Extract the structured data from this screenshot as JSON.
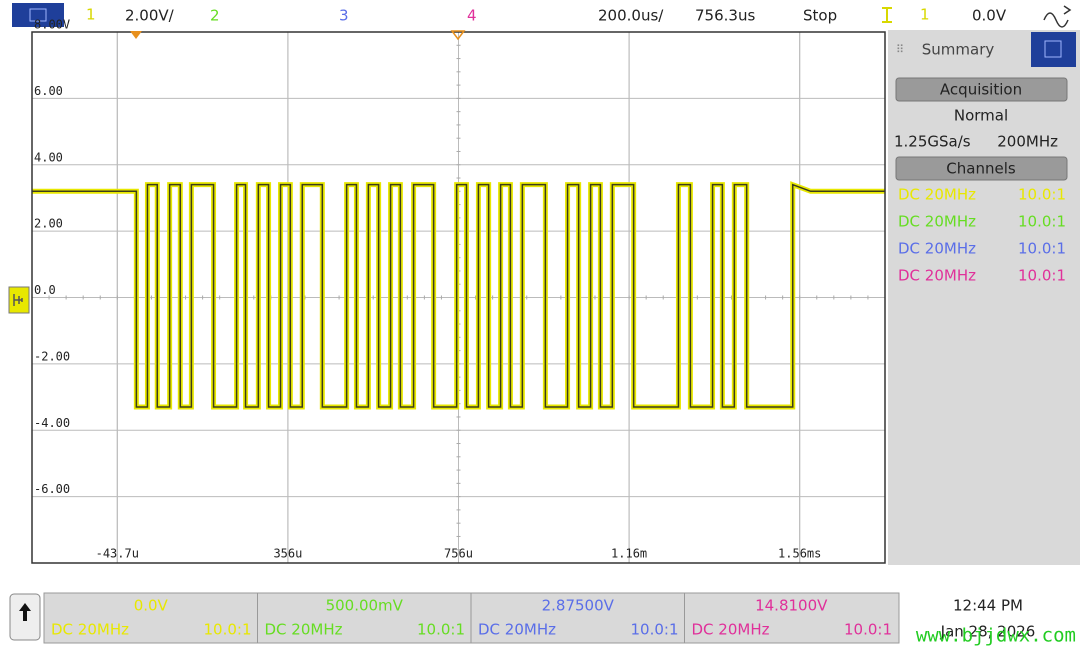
{
  "top_bar": {
    "channel_1": "1",
    "scale": "2.00V/",
    "channel_2": "2",
    "channel_3": "3",
    "channel_4": "4",
    "timebase": "200.0us/",
    "delay": "756.3us",
    "status": "Stop",
    "trigger_source": "1",
    "trigger_level": "0.0V"
  },
  "chart_data": {
    "type": "line",
    "xlim": [
      -243.7,
      1756.3
    ],
    "ylim": [
      -8,
      8
    ],
    "xticks": [
      {
        "value": -43.7,
        "label": "-43.7u"
      },
      {
        "value": 356.3,
        "label": "356u"
      },
      {
        "value": 756.3,
        "label": "756u"
      },
      {
        "value": 1156.3,
        "label": "1.16m"
      },
      {
        "value": 1556.3,
        "label": "1.56ms"
      }
    ],
    "yticks": [
      {
        "value": 8,
        "label": "8.00V"
      },
      {
        "value": 6,
        "label": "6.00"
      },
      {
        "value": 4,
        "label": "4.00"
      },
      {
        "value": 2,
        "label": "2.00"
      },
      {
        "value": 0,
        "label": "0.0"
      },
      {
        "value": -2,
        "label": "-2.00"
      },
      {
        "value": -4,
        "label": "-4.00"
      },
      {
        "value": -6,
        "label": "-6.00"
      }
    ],
    "grid": true,
    "x": [
      -243.7,
      1,
      1,
      27,
      27,
      50,
      50,
      79,
      79,
      104,
      104,
      130,
      130,
      182,
      182,
      236,
      236,
      257,
      257,
      287,
      287,
      311,
      311,
      339,
      339,
      362,
      362,
      390,
      390,
      437,
      437,
      494,
      494,
      517,
      517,
      545,
      545,
      569,
      569,
      597,
      597,
      620,
      620,
      651,
      651,
      698,
      698,
      752,
      752,
      775,
      775,
      803,
      803,
      827,
      827,
      855,
      855,
      878,
      878,
      906,
      906,
      960,
      960,
      1012,
      1012,
      1038,
      1038,
      1066,
      1066,
      1089,
      1089,
      1117,
      1117,
      1167,
      1167,
      1272,
      1272,
      1300,
      1300,
      1352,
      1352,
      1375,
      1375,
      1403,
      1403,
      1432,
      1432,
      1540,
      1540,
      1582,
      1756.3
    ],
    "series": [
      {
        "color": "#e8e800",
        "values": [
          3.2,
          3.2,
          -3.3,
          -3.3,
          3.4,
          3.4,
          -3.3,
          -3.3,
          3.4,
          3.4,
          -3.3,
          -3.3,
          3.4,
          3.4,
          -3.3,
          -3.3,
          3.4,
          3.4,
          -3.3,
          -3.3,
          3.4,
          3.4,
          -3.3,
          -3.3,
          3.4,
          3.4,
          -3.3,
          -3.3,
          3.4,
          3.4,
          -3.3,
          -3.3,
          3.4,
          3.4,
          -3.3,
          -3.3,
          3.4,
          3.4,
          -3.3,
          -3.3,
          3.4,
          3.4,
          -3.3,
          -3.3,
          3.4,
          3.4,
          -3.3,
          -3.3,
          3.4,
          3.4,
          -3.3,
          -3.3,
          3.4,
          3.4,
          -3.3,
          -3.3,
          3.4,
          3.4,
          -3.3,
          -3.3,
          3.4,
          3.4,
          -3.3,
          -3.3,
          3.4,
          3.4,
          -3.3,
          -3.3,
          3.4,
          3.4,
          -3.3,
          -3.3,
          3.4,
          3.4,
          -3.3,
          -3.3,
          3.4,
          3.4,
          -3.3,
          -3.3,
          3.4,
          3.4,
          -3.3,
          -3.3,
          3.4,
          3.4,
          -3.3,
          -3.3,
          3.4,
          3.2,
          3.2
        ]
      }
    ]
  },
  "side_panel": {
    "title": "Summary",
    "acquisition": "Acquisition",
    "mode": "Normal",
    "sample_rate": "1.25GSa/s",
    "bandwidth": "200MHz",
    "channels": "Channels",
    "channel_rows": [
      {
        "coupling": "DC 20MHz",
        "probe": "10.0:1",
        "color": "#e8e800"
      },
      {
        "coupling": "DC 20MHz",
        "probe": "10.0:1",
        "color": "#66dd22"
      },
      {
        "coupling": "DC 20MHz",
        "probe": "10.0:1",
        "color": "#5a6ee8"
      },
      {
        "coupling": "DC 20MHz",
        "probe": "10.0:1",
        "color": "#e0309a"
      }
    ]
  },
  "bottom_bar": {
    "channels": [
      {
        "value": "0.0V",
        "coupling": "DC 20MHz",
        "probe": "10.0:1",
        "color": "#e8e800"
      },
      {
        "value": "500.00mV",
        "coupling": "DC 20MHz",
        "probe": "10.0:1",
        "color": "#66dd22"
      },
      {
        "value": "2.87500V",
        "coupling": "DC 20MHz",
        "probe": "10.0:1",
        "color": "#5a6ee8"
      },
      {
        "value": "14.8100V",
        "coupling": "DC 20MHz",
        "probe": "10.0:1",
        "color": "#e0309a"
      }
    ],
    "time": "12:44 PM",
    "date": "Jan 28, 2026"
  },
  "watermark": "www.bjjdwx.com"
}
